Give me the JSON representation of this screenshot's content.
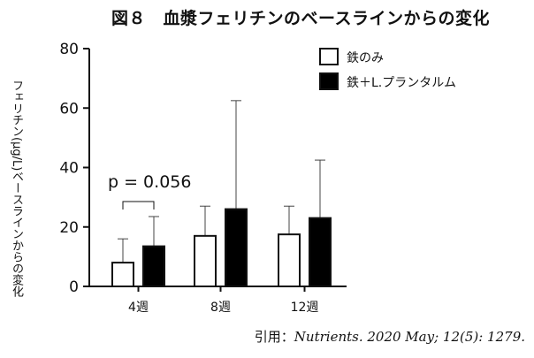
{
  "figure_title": "図８　血漿フェリチンのベースラインからの変化",
  "citation": {
    "prefix": "引用：",
    "source": "Nutrients. 2020 May; 12(5): 1279."
  },
  "chart_data": {
    "type": "bar",
    "title": "",
    "ylabel": "フェリチン(μg/L)ベースラインからの変化",
    "xlabel": "",
    "categories": [
      "4週",
      "8週",
      "12週"
    ],
    "ylim": [
      0,
      80
    ],
    "yticks": [
      0,
      20,
      40,
      60,
      80
    ],
    "series": [
      {
        "name": "鉄のみ",
        "color": "#ffffff",
        "values": [
          8,
          17,
          17.5
        ],
        "error_upper": [
          16,
          27,
          27
        ]
      },
      {
        "name": "鉄＋L.プランタルム",
        "color": "#000000",
        "values": [
          13.5,
          26,
          23
        ],
        "error_upper": [
          23.5,
          62.5,
          42.5
        ]
      }
    ],
    "annotation": {
      "text": "p = 0.056",
      "category": "4週"
    },
    "legend_position": "top-right",
    "grid": false
  }
}
